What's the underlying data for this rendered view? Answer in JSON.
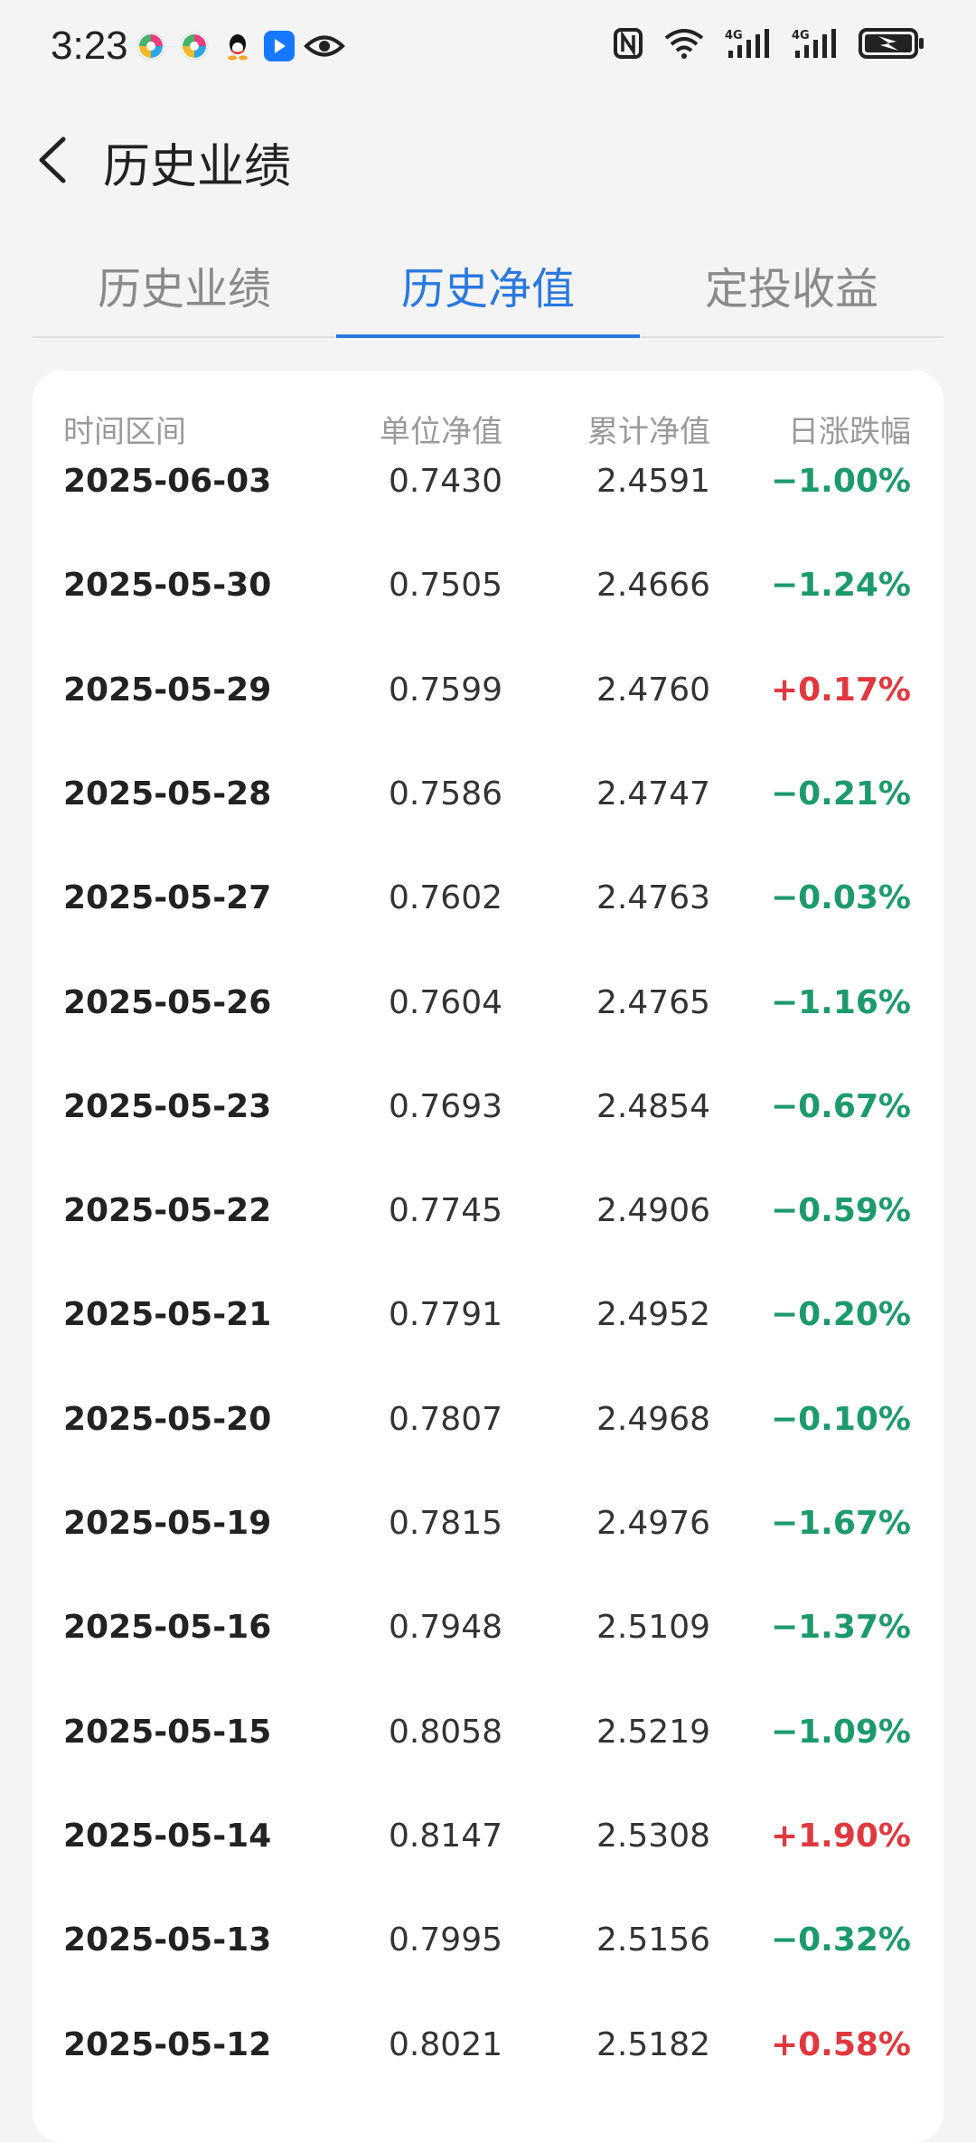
{
  "status_bar": {
    "time": "3:23",
    "icons": [
      "app-icon",
      "app-icon",
      "qq-icon",
      "app-icon",
      "eye-icon"
    ],
    "right_icons": [
      "nfc-icon",
      "wifi-icon",
      "4g-signal-icon",
      "4g-signal-icon",
      "battery-charging-icon"
    ]
  },
  "header": {
    "title": "历史业绩",
    "back_icon": "chevron-left-icon"
  },
  "tabs": [
    {
      "label": "历史业绩",
      "active": false
    },
    {
      "label": "历史净值",
      "active": true
    },
    {
      "label": "定投收益",
      "active": false
    }
  ],
  "table": {
    "columns": [
      "时间区间",
      "单位净值",
      "累计净值",
      "日涨跌幅"
    ],
    "rows": [
      {
        "date": "2025-06-03",
        "unit_nav": "0.7430",
        "acc_nav": "2.4591",
        "change": "−1.00%",
        "dir": "down"
      },
      {
        "date": "2025-05-30",
        "unit_nav": "0.7505",
        "acc_nav": "2.4666",
        "change": "−1.24%",
        "dir": "down"
      },
      {
        "date": "2025-05-29",
        "unit_nav": "0.7599",
        "acc_nav": "2.4760",
        "change": "+0.17%",
        "dir": "up"
      },
      {
        "date": "2025-05-28",
        "unit_nav": "0.7586",
        "acc_nav": "2.4747",
        "change": "−0.21%",
        "dir": "down"
      },
      {
        "date": "2025-05-27",
        "unit_nav": "0.7602",
        "acc_nav": "2.4763",
        "change": "−0.03%",
        "dir": "down"
      },
      {
        "date": "2025-05-26",
        "unit_nav": "0.7604",
        "acc_nav": "2.4765",
        "change": "−1.16%",
        "dir": "down"
      },
      {
        "date": "2025-05-23",
        "unit_nav": "0.7693",
        "acc_nav": "2.4854",
        "change": "−0.67%",
        "dir": "down"
      },
      {
        "date": "2025-05-22",
        "unit_nav": "0.7745",
        "acc_nav": "2.4906",
        "change": "−0.59%",
        "dir": "down"
      },
      {
        "date": "2025-05-21",
        "unit_nav": "0.7791",
        "acc_nav": "2.4952",
        "change": "−0.20%",
        "dir": "down"
      },
      {
        "date": "2025-05-20",
        "unit_nav": "0.7807",
        "acc_nav": "2.4968",
        "change": "−0.10%",
        "dir": "down"
      },
      {
        "date": "2025-05-19",
        "unit_nav": "0.7815",
        "acc_nav": "2.4976",
        "change": "−1.67%",
        "dir": "down"
      },
      {
        "date": "2025-05-16",
        "unit_nav": "0.7948",
        "acc_nav": "2.5109",
        "change": "−1.37%",
        "dir": "down"
      },
      {
        "date": "2025-05-15",
        "unit_nav": "0.8058",
        "acc_nav": "2.5219",
        "change": "−1.09%",
        "dir": "down"
      },
      {
        "date": "2025-05-14",
        "unit_nav": "0.8147",
        "acc_nav": "2.5308",
        "change": "+1.90%",
        "dir": "up"
      },
      {
        "date": "2025-05-13",
        "unit_nav": "0.7995",
        "acc_nav": "2.5156",
        "change": "−0.32%",
        "dir": "down"
      },
      {
        "date": "2025-05-12",
        "unit_nav": "0.8021",
        "acc_nav": "2.5182",
        "change": "+0.58%",
        "dir": "up"
      }
    ]
  },
  "colors": {
    "accent": "#2a78e0",
    "down": "#1d9a6c",
    "up": "#e0383e"
  }
}
